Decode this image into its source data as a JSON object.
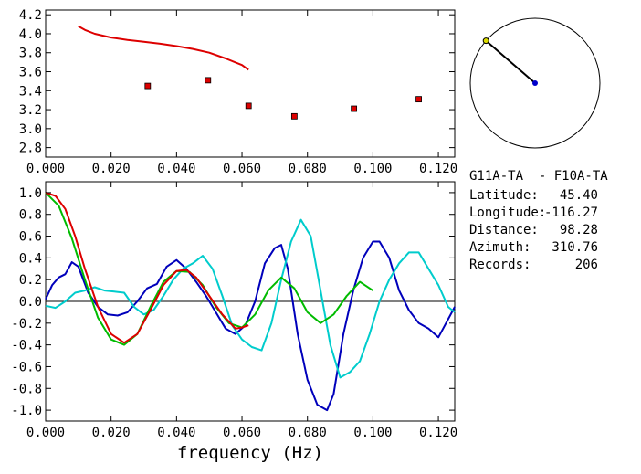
{
  "chart_data": [
    {
      "type": "scatter",
      "panel": "top",
      "xlim": [
        0.0,
        0.125
      ],
      "ylim": [
        2.7,
        4.25
      ],
      "x_ticks": [
        "0.000",
        "0.020",
        "0.040",
        "0.060",
        "0.080",
        "0.100",
        "0.120"
      ],
      "x_tick_values": [
        0.0,
        0.02,
        0.04,
        0.06,
        0.08,
        0.1,
        0.12
      ],
      "y_ticks": [
        "2.8",
        "3.0",
        "3.2",
        "3.4",
        "3.6",
        "3.8",
        "4.0",
        "4.2"
      ],
      "y_tick_values": [
        2.8,
        3.0,
        3.2,
        3.4,
        3.6,
        3.8,
        4.0,
        4.2
      ],
      "series": [
        {
          "kind": "line",
          "color": "#dd0000",
          "x": [
            0.01,
            0.012,
            0.015,
            0.02,
            0.025,
            0.03,
            0.035,
            0.04,
            0.045,
            0.05,
            0.055,
            0.06,
            0.062
          ],
          "y": [
            4.08,
            4.04,
            4.0,
            3.96,
            3.935,
            3.915,
            3.895,
            3.87,
            3.84,
            3.8,
            3.74,
            3.67,
            3.62
          ]
        },
        {
          "kind": "markers",
          "color": "#dd0000",
          "x": [
            0.0312,
            0.0496,
            0.062,
            0.076,
            0.0942,
            0.114
          ],
          "y": [
            3.45,
            3.51,
            3.24,
            3.13,
            3.21,
            3.31
          ]
        }
      ]
    },
    {
      "type": "line",
      "panel": "bottom",
      "xlim": [
        0.0,
        0.125
      ],
      "ylim": [
        -1.1,
        1.1
      ],
      "x_ticks": [
        "0.000",
        "0.020",
        "0.040",
        "0.060",
        "0.080",
        "0.100",
        "0.120"
      ],
      "x_tick_values": [
        0.0,
        0.02,
        0.04,
        0.06,
        0.08,
        0.1,
        0.12
      ],
      "y_ticks": [
        "1.0",
        "0.8",
        "0.6",
        "0.4",
        "0.2",
        "0.0",
        "-0.2",
        "-0.4",
        "-0.6",
        "-0.8",
        "-1.0"
      ],
      "y_tick_values": [
        1.0,
        0.8,
        0.6,
        0.4,
        0.2,
        0.0,
        -0.2,
        -0.4,
        -0.6,
        -0.8,
        -1.0
      ],
      "xlabel": "frequency (Hz)",
      "zero_line": true,
      "series": [
        {
          "color": "#0000bb",
          "x": [
            0.0,
            0.002,
            0.004,
            0.006,
            0.008,
            0.01,
            0.013,
            0.016,
            0.019,
            0.022,
            0.025,
            0.028,
            0.031,
            0.034,
            0.037,
            0.04,
            0.043,
            0.046,
            0.049,
            0.052,
            0.055,
            0.058,
            0.061,
            0.064,
            0.067,
            0.07,
            0.072,
            0.074,
            0.077,
            0.08,
            0.083,
            0.086,
            0.088,
            0.091,
            0.094,
            0.097,
            0.1,
            0.102,
            0.105,
            0.108,
            0.111,
            0.114,
            0.117,
            0.12,
            0.122,
            0.125
          ],
          "y": [
            0.02,
            0.15,
            0.22,
            0.25,
            0.36,
            0.32,
            0.08,
            -0.05,
            -0.12,
            -0.13,
            -0.1,
            0.0,
            0.12,
            0.16,
            0.32,
            0.38,
            0.3,
            0.18,
            0.05,
            -0.1,
            -0.25,
            -0.3,
            -0.22,
            0.0,
            0.35,
            0.49,
            0.52,
            0.3,
            -0.3,
            -0.72,
            -0.95,
            -1.0,
            -0.85,
            -0.3,
            0.1,
            0.4,
            0.55,
            0.55,
            0.4,
            0.1,
            -0.08,
            -0.2,
            -0.25,
            -0.33,
            -0.22,
            -0.05
          ]
        },
        {
          "color": "#00cccc",
          "x": [
            0.0,
            0.003,
            0.006,
            0.009,
            0.012,
            0.015,
            0.018,
            0.021,
            0.024,
            0.027,
            0.03,
            0.033,
            0.036,
            0.039,
            0.042,
            0.045,
            0.048,
            0.051,
            0.054,
            0.057,
            0.06,
            0.063,
            0.066,
            0.069,
            0.072,
            0.075,
            0.078,
            0.081,
            0.084,
            0.087,
            0.09,
            0.093,
            0.096,
            0.099,
            0.102,
            0.105,
            0.108,
            0.111,
            0.114,
            0.117,
            0.12,
            0.123,
            0.125
          ],
          "y": [
            -0.04,
            -0.06,
            0.0,
            0.08,
            0.1,
            0.13,
            0.1,
            0.09,
            0.08,
            -0.05,
            -0.12,
            -0.08,
            0.05,
            0.2,
            0.3,
            0.35,
            0.42,
            0.3,
            0.05,
            -0.22,
            -0.35,
            -0.42,
            -0.45,
            -0.2,
            0.2,
            0.55,
            0.75,
            0.6,
            0.1,
            -0.4,
            -0.7,
            -0.65,
            -0.55,
            -0.3,
            0.0,
            0.2,
            0.35,
            0.45,
            0.45,
            0.3,
            0.15,
            -0.05,
            -0.1
          ]
        },
        {
          "color": "#00bb00",
          "x": [
            0.0,
            0.004,
            0.008,
            0.012,
            0.016,
            0.02,
            0.024,
            0.028,
            0.032,
            0.036,
            0.04,
            0.044,
            0.048,
            0.052,
            0.056,
            0.06,
            0.064,
            0.068,
            0.072,
            0.076,
            0.08,
            0.084,
            0.088,
            0.092,
            0.096,
            0.1
          ],
          "y": [
            1.0,
            0.88,
            0.58,
            0.2,
            -0.15,
            -0.35,
            -0.4,
            -0.3,
            -0.05,
            0.18,
            0.28,
            0.27,
            0.15,
            -0.05,
            -0.2,
            -0.24,
            -0.12,
            0.1,
            0.22,
            0.12,
            -0.1,
            -0.2,
            -0.12,
            0.05,
            0.18,
            0.1
          ]
        },
        {
          "color": "#dd0000",
          "x": [
            0.0,
            0.003,
            0.006,
            0.009,
            0.012,
            0.016,
            0.02,
            0.024,
            0.028,
            0.032,
            0.036,
            0.04,
            0.043,
            0.046,
            0.05,
            0.054,
            0.058,
            0.06,
            0.062
          ],
          "y": [
            1.0,
            0.97,
            0.85,
            0.6,
            0.3,
            -0.05,
            -0.3,
            -0.38,
            -0.3,
            -0.08,
            0.15,
            0.28,
            0.29,
            0.22,
            0.05,
            -0.12,
            -0.25,
            -0.24,
            -0.22
          ]
        }
      ]
    }
  ],
  "map": {
    "dot_angle_deg": 310.76,
    "dot_color": "#0000cc",
    "end_color": "#dddd00"
  },
  "info": {
    "station_pair": "G11A-TA  - F10A-TA",
    "latitude_label": "Latitude:",
    "latitude_value": "45.40",
    "longitude_label": "Longitude:",
    "longitude_value": "-116.27",
    "distance_label": "Distance:",
    "distance_value": "98.28",
    "azimuth_label": "Azimuth:",
    "azimuth_value": "310.76",
    "records_label": "Records:",
    "records_value": "206"
  }
}
